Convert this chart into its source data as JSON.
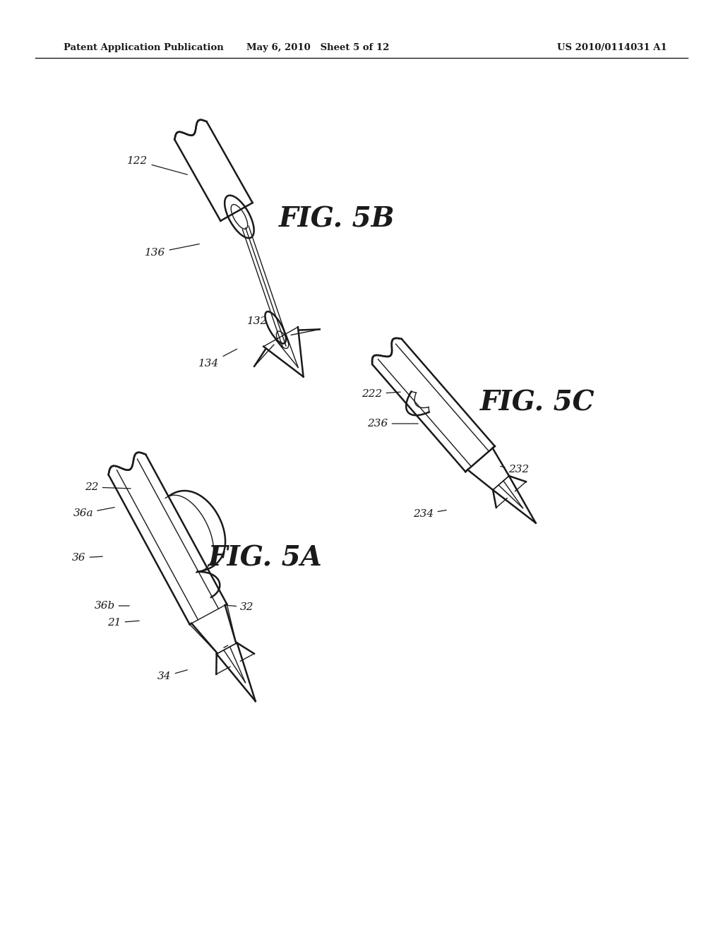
{
  "bg_color": "#ffffff",
  "line_color": "#1a1a1a",
  "header_left": "Patent Application Publication",
  "header_center": "May 6, 2010   Sheet 5 of 12",
  "header_right": "US 2010/0114031 A1",
  "fig5b_label": "FIG. 5B",
  "fig5a_label": "FIG. 5A",
  "fig5c_label": "FIG. 5C"
}
